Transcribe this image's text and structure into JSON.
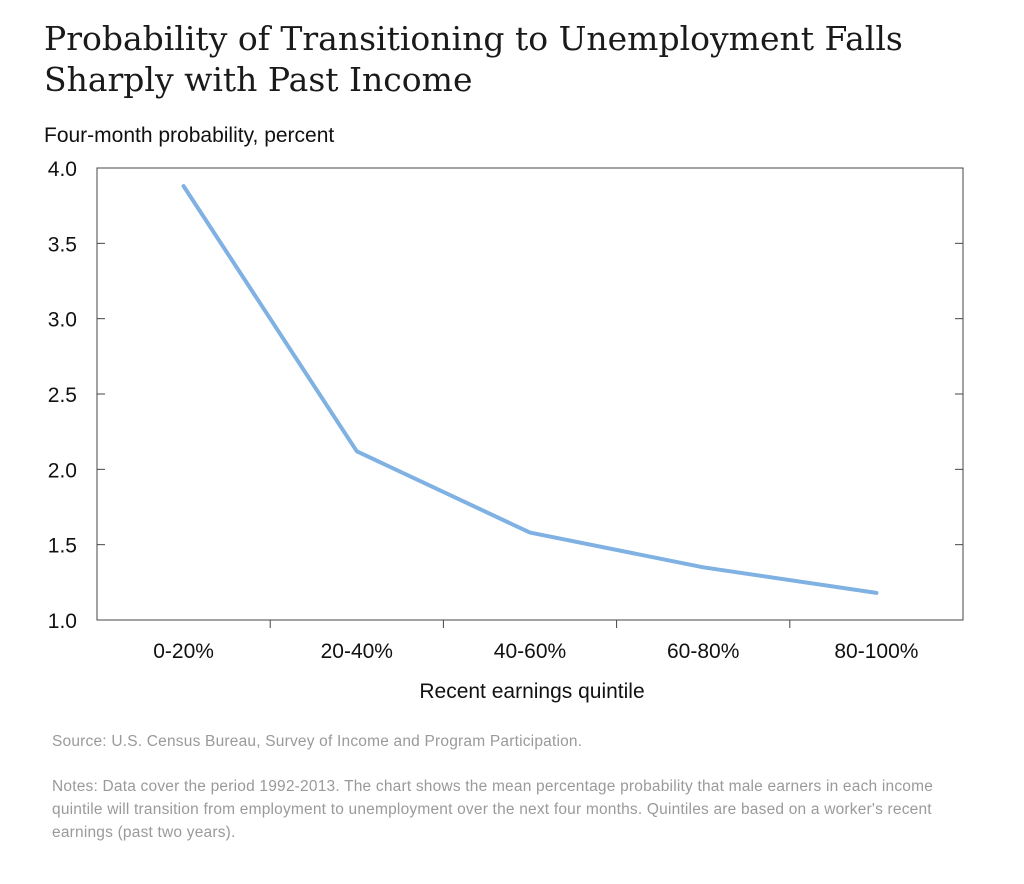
{
  "title": "Probability of Transitioning to Unemployment Falls Sharply with Past Income",
  "chart_data": {
    "type": "line",
    "title": "Probability of Transitioning to Unemployment Falls Sharply with Past Income",
    "ylabel": "Four-month probability, percent",
    "xlabel": "Recent earnings quintile",
    "categories": [
      "0-20%",
      "20-40%",
      "40-60%",
      "60-80%",
      "80-100%"
    ],
    "values": [
      3.88,
      2.12,
      1.58,
      1.35,
      1.18
    ],
    "ylim": [
      1.0,
      4.0
    ],
    "yticks": [
      "1.0",
      "1.5",
      "2.0",
      "2.5",
      "3.0",
      "3.5",
      "4.0"
    ],
    "grid": false,
    "line_color": "#7fb1e3"
  },
  "source": "Source: U.S. Census Bureau, Survey of Income and Program Participation.",
  "notes": "Notes: Data cover the period 1992-2013. The chart shows the mean percentage probability that male earners in each income quintile will transition from employment to unemployment over the next four months. Quintiles are based on a worker's recent earnings (past two years)."
}
